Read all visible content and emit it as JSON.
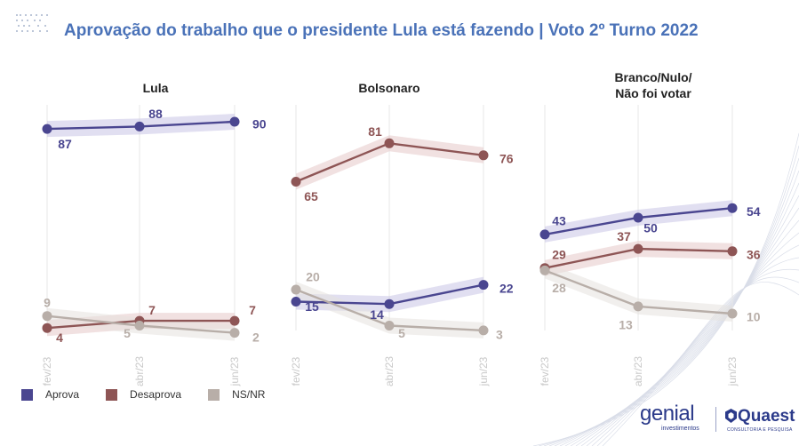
{
  "title": "Aprovação do trabalho que o presidente Lula está fazendo | Voto 2º Turno 2022",
  "colors": {
    "aprova": "#4a4690",
    "desaprova": "#8e5555",
    "nsnr": "#b8aea8",
    "title": "#4a72b8"
  },
  "legend": [
    {
      "label": "Aprova",
      "key": "aprova"
    },
    {
      "label": "Desaprova",
      "key": "desaprova"
    },
    {
      "label": "NS/NR",
      "key": "nsnr"
    }
  ],
  "logos": {
    "genial": "genial",
    "genial_sub": "investimentos",
    "quaest": "Quaest",
    "quaest_sub": "CONSULTORIA E PESQUISA"
  },
  "chart_data": [
    {
      "type": "line",
      "title": "Lula",
      "x": [
        "fev/23",
        "abr/23",
        "jun/23"
      ],
      "ylim": [
        0,
        100
      ],
      "series": [
        {
          "name": "Aprova",
          "values": [
            87,
            88,
            90
          ]
        },
        {
          "name": "Desaprova",
          "values": [
            4,
            7,
            7
          ]
        },
        {
          "name": "NS/NR",
          "values": [
            9,
            5,
            2
          ]
        }
      ]
    },
    {
      "type": "line",
      "title": "Bolsonaro",
      "x": [
        "fev/23",
        "abr/23",
        "jun/23"
      ],
      "ylim": [
        0,
        100
      ],
      "series": [
        {
          "name": "Aprova",
          "values": [
            15,
            14,
            22
          ]
        },
        {
          "name": "Desaprova",
          "values": [
            65,
            81,
            76
          ]
        },
        {
          "name": "NS/NR",
          "values": [
            20,
            5,
            3
          ]
        }
      ]
    },
    {
      "type": "line",
      "title": "Branco/Nulo/\nNão foi votar",
      "x": [
        "fev/23",
        "abr/23",
        "jun/23"
      ],
      "ylim": [
        0,
        100
      ],
      "series": [
        {
          "name": "Aprova",
          "values": [
            43,
            50,
            54
          ]
        },
        {
          "name": "Desaprova",
          "values": [
            29,
            37,
            36
          ]
        },
        {
          "name": "NS/NR",
          "values": [
            28,
            13,
            10
          ]
        }
      ]
    }
  ]
}
